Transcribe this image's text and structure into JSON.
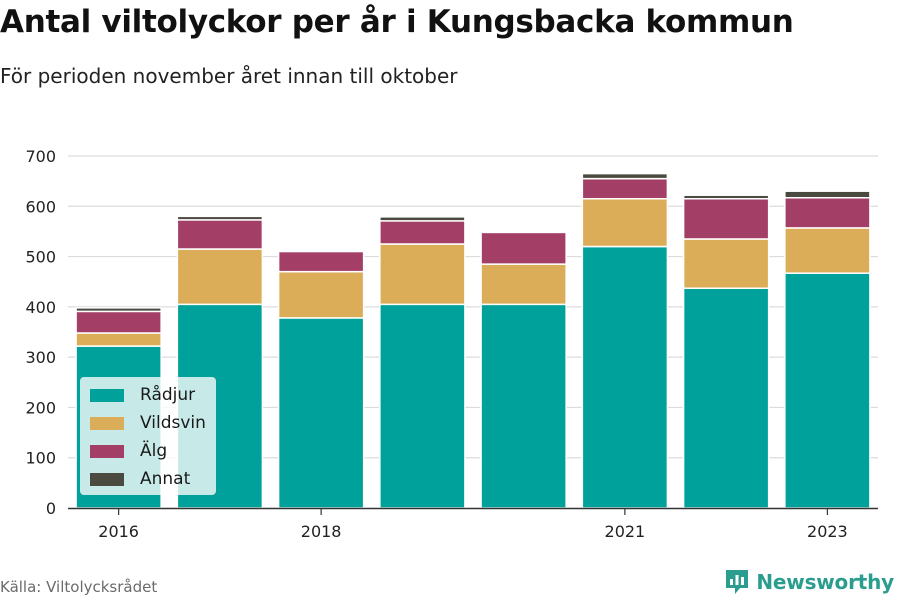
{
  "title": "Antal viltolyckor per år i Kungsbacka kommun",
  "subtitle": "För perioden november året innan till oktober",
  "source": "Källa: Viltolycksrådet",
  "brand": "Newsworthy",
  "colors": {
    "Rådjur": "#00a19a",
    "Vildsvin": "#dbad59",
    "Älg": "#a33f67",
    "Annat": "#4a4a40",
    "brand": "#2a9d8f"
  },
  "chart_data": {
    "type": "bar",
    "stacked": true,
    "categories": [
      "2016",
      "2017",
      "2018",
      "2019",
      "2020",
      "2021",
      "2022",
      "2023"
    ],
    "x_tick_labels": [
      "2016",
      "",
      "2018",
      "",
      "",
      "2021",
      "",
      "2023"
    ],
    "series": [
      {
        "name": "Rådjur",
        "values": [
          322,
          405,
          378,
          405,
          405,
          520,
          437,
          467
        ]
      },
      {
        "name": "Vildsvin",
        "values": [
          26,
          110,
          92,
          120,
          80,
          95,
          98,
          90
        ]
      },
      {
        "name": "Älg",
        "values": [
          43,
          58,
          40,
          46,
          63,
          40,
          80,
          60
        ]
      },
      {
        "name": "Annat",
        "values": [
          7,
          7,
          0,
          8,
          0,
          10,
          7,
          13
        ]
      }
    ],
    "ylim": [
      0,
      700
    ],
    "yticks": [
      0,
      100,
      200,
      300,
      400,
      500,
      600,
      700
    ],
    "grid": true,
    "legend_position": "bottom-left"
  }
}
